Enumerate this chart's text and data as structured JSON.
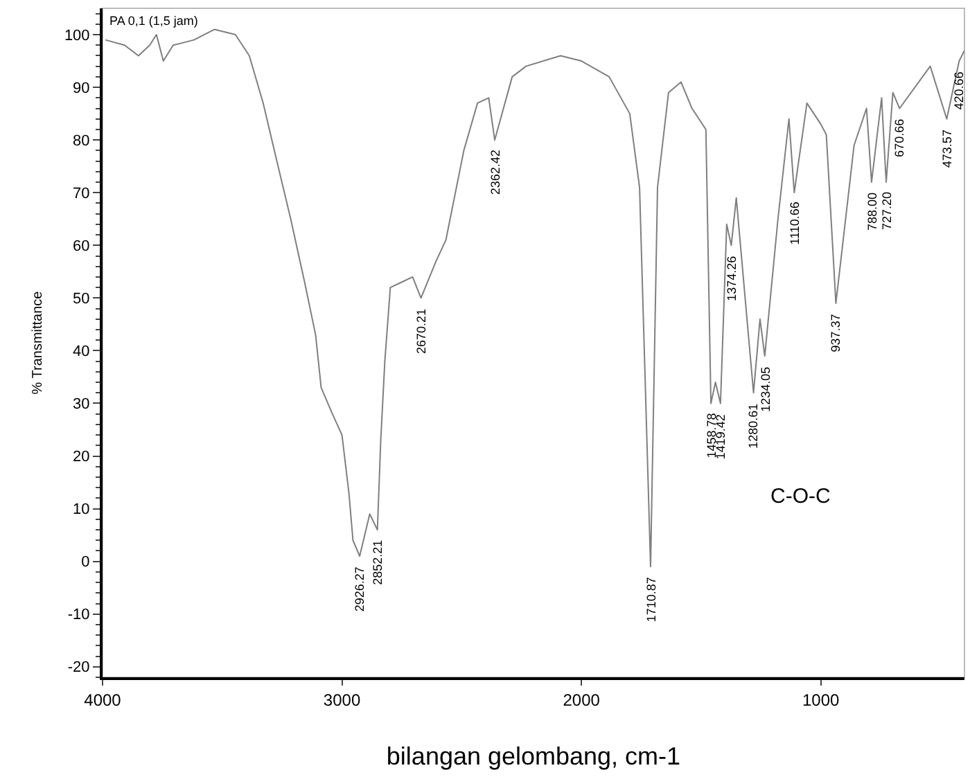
{
  "chart_data": {
    "type": "line",
    "xlabel": "bilangan gelombang, cm-1",
    "ylabel": "% Transmittance",
    "xlim": [
      4000,
      400
    ],
    "ylim": [
      -22,
      105
    ],
    "xticks": [
      4000,
      3000,
      2000,
      1000
    ],
    "yticks": [
      -20,
      -10,
      0,
      10,
      20,
      30,
      40,
      50,
      60,
      70,
      80,
      90,
      100
    ],
    "grid": false,
    "marker": "none",
    "line_style": "solid",
    "x": [
      3988,
      3908,
      3850,
      3803,
      3775,
      3746,
      3705,
      3618,
      3532,
      3445,
      3387,
      3329,
      3272,
      3214,
      3156,
      3110,
      3087,
      3040,
      3000,
      2971,
      2954,
      2926,
      2884,
      2852,
      2838,
      2821,
      2798,
      2751,
      2705,
      2670,
      2607,
      2566,
      2491,
      2434,
      2387,
      2362,
      2289,
      2231,
      2087,
      2000,
      1884,
      1798,
      1757,
      1711,
      1682,
      1636,
      1584,
      1538,
      1480,
      1459,
      1440,
      1419,
      1393,
      1374,
      1353,
      1281,
      1254,
      1234,
      1179,
      1133,
      1111,
      1058,
      1000,
      977,
      937,
      861,
      809,
      788,
      746,
      727,
      699,
      671,
      543,
      474,
      422,
      400
    ],
    "series": [
      {
        "color": "#7f7f7f",
        "values": [
          99,
          98,
          96,
          98,
          100,
          95,
          98,
          99,
          101,
          100,
          96,
          87,
          76,
          65,
          53,
          43,
          33,
          28,
          24,
          13,
          4,
          1,
          9,
          6,
          23,
          38,
          52,
          53,
          54,
          50,
          57,
          61,
          78,
          87,
          88,
          80,
          92,
          94,
          96,
          95,
          92,
          85,
          71,
          -1,
          71,
          89,
          91,
          86,
          82,
          30,
          34,
          30,
          64,
          60,
          69,
          32,
          46,
          39,
          65,
          84,
          70,
          87,
          83,
          81,
          49,
          79,
          86,
          72,
          88,
          72,
          89,
          86,
          94,
          84,
          95,
          97
        ]
      }
    ],
    "annotations": [
      "PA 0,1 (1,5 jam)",
      "C-O-C",
      {
        "text": "2926.27",
        "x": 2926,
        "y": 1
      },
      {
        "text": "2852.21",
        "x": 2852,
        "y": 6
      },
      {
        "text": "2670.21",
        "x": 2670,
        "y": 50
      },
      {
        "text": "2362.42",
        "x": 2362,
        "y": 80
      },
      {
        "text": "1710.87",
        "x": 1711,
        "y": -1
      },
      {
        "text": "1458.78",
        "x": 1459,
        "y": 30
      },
      {
        "text": "1419.42",
        "x": 1419,
        "y": 30
      },
      {
        "text": "1374.26",
        "x": 1374,
        "y": 60
      },
      {
        "text": "1280.61",
        "x": 1281,
        "y": 32
      },
      {
        "text": "1234.05",
        "x": 1234,
        "y": 39
      },
      {
        "text": "1110.66",
        "x": 1111,
        "y": 70
      },
      {
        "text": "937.37",
        "x": 937,
        "y": 49
      },
      {
        "text": "788.00",
        "x": 788,
        "y": 72
      },
      {
        "text": "727.20",
        "x": 727,
        "y": 72
      },
      {
        "text": "670.66",
        "x": 671,
        "y": 86
      },
      {
        "text": "473.57",
        "x": 474,
        "y": 84
      },
      {
        "text": "420.66",
        "x": 422,
        "y": 95
      }
    ]
  }
}
